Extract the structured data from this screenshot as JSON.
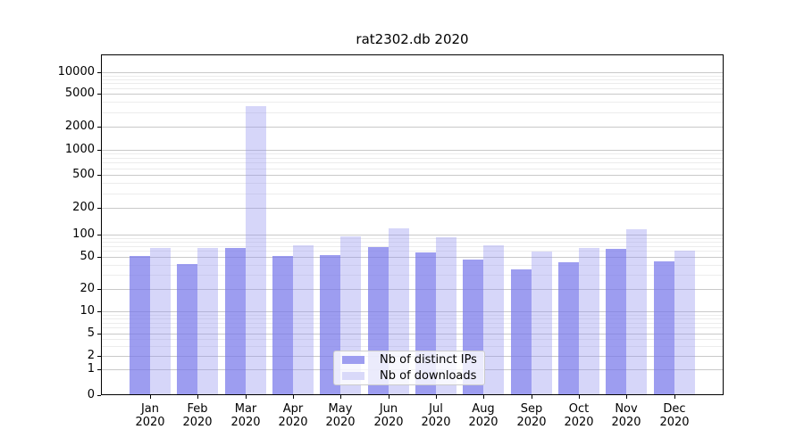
{
  "title": "rat2302.db 2020",
  "colors": {
    "distinct_ips_bar": "#9d9df0",
    "downloads_bar": "#d9d9f9",
    "grid_major": "#c9c9c9",
    "grid_minor": "#ececec",
    "axis": "#000000",
    "legend_border": "#cccccc"
  },
  "chart_data": {
    "type": "bar",
    "title": "rat2302.db 2020",
    "xlabel": "",
    "ylabel": "",
    "categories": [
      "Jan 2020",
      "Feb 2020",
      "Mar 2020",
      "Apr 2020",
      "May 2020",
      "Jun 2020",
      "Jul 2020",
      "Aug 2020",
      "Sep 2020",
      "Oct 2020",
      "Nov 2020",
      "Dec 2020"
    ],
    "series": [
      {
        "name": "Nb of distinct IPs",
        "color": "#9d9df0",
        "values": [
          52,
          41,
          66,
          51,
          53,
          68,
          57,
          46,
          35,
          43,
          64,
          44
        ]
      },
      {
        "name": "Nb of downloads",
        "color": "#d9d9f9",
        "values": [
          66,
          66,
          3500,
          72,
          95,
          118,
          93,
          72,
          59,
          66,
          115,
          61
        ]
      }
    ],
    "yscale": "symlog",
    "yticks": [
      0,
      1,
      2,
      5,
      10,
      20,
      50,
      100,
      200,
      500,
      1000,
      2000,
      5000,
      10000
    ],
    "ylim": [
      0,
      17000
    ],
    "grid": true,
    "legend_position": "lower center"
  }
}
